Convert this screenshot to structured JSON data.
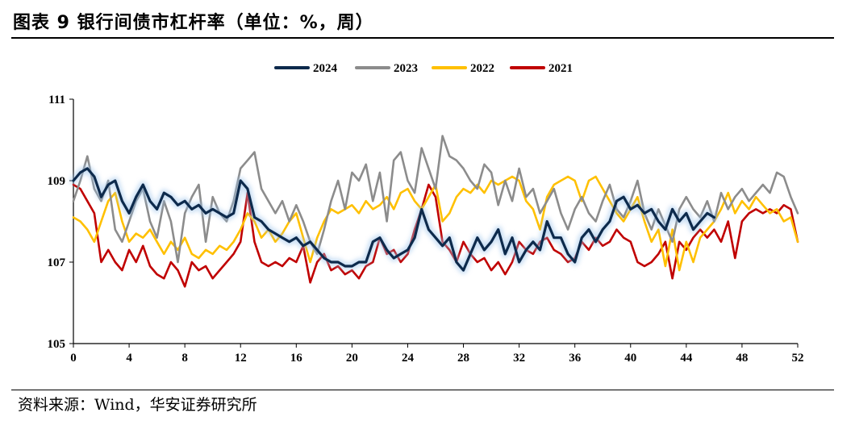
{
  "header": {
    "title": "图表 9 银行间债市杠杆率（单位：%，周）"
  },
  "footer": {
    "source": "资料来源：Wind，华安证券研究所"
  },
  "chart_data": {
    "type": "line",
    "title": "银行间债市杠杆率",
    "xlabel": "",
    "ylabel": "",
    "xlim": [
      0,
      52
    ],
    "ylim": [
      105,
      111
    ],
    "x_ticks": [
      0,
      4,
      8,
      12,
      16,
      20,
      24,
      28,
      32,
      36,
      40,
      44,
      48,
      52
    ],
    "y_ticks": [
      105,
      107,
      109,
      111
    ],
    "legend_position": "top-center",
    "series": [
      {
        "name": "2024",
        "color": "#0d2a4c",
        "x": [
          0,
          0.5,
          1,
          1.5,
          2,
          2.5,
          3,
          3.5,
          4,
          4.5,
          5,
          5.5,
          6,
          6.5,
          7,
          7.5,
          8,
          8.5,
          9,
          9.5,
          10,
          10.5,
          11,
          11.5,
          12,
          12.5,
          13,
          13.5,
          14,
          14.5,
          15,
          15.5,
          16,
          16.5,
          17,
          17.5,
          18,
          18.5,
          19,
          19.5,
          20,
          20.5,
          21,
          21.5,
          22,
          22.5,
          23,
          23.5,
          24,
          24.5,
          25,
          25.5,
          26,
          26.5,
          27,
          27.5,
          28,
          28.5,
          29,
          29.5,
          30,
          30.5,
          31,
          31.5,
          32,
          32.5,
          33,
          33.5,
          34,
          34.5,
          35,
          35.5,
          36,
          36.5,
          37,
          37.5,
          38,
          38.5,
          39,
          39.5,
          40,
          40.5,
          41,
          41.5,
          42,
          42.5,
          43,
          43.5,
          44,
          44.5,
          45,
          45.5,
          46
        ],
        "values": [
          109.0,
          109.2,
          109.3,
          109.1,
          108.6,
          108.9,
          109.0,
          108.5,
          108.2,
          108.6,
          108.9,
          108.5,
          108.3,
          108.7,
          108.6,
          108.4,
          108.5,
          108.3,
          108.4,
          108.2,
          108.3,
          108.2,
          108.1,
          108.2,
          109.0,
          108.8,
          108.1,
          108.0,
          107.8,
          107.7,
          107.6,
          107.5,
          107.6,
          107.4,
          107.5,
          107.3,
          107.1,
          107.0,
          107.0,
          106.9,
          106.9,
          107.0,
          107.0,
          107.5,
          107.6,
          107.3,
          107.1,
          107.2,
          107.3,
          107.6,
          108.3,
          107.8,
          107.6,
          107.4,
          107.6,
          107.0,
          106.8,
          107.2,
          107.6,
          107.3,
          107.5,
          107.8,
          107.2,
          107.6,
          107.0,
          107.3,
          107.5,
          107.3,
          108.0,
          107.6,
          107.6,
          107.2,
          107.0,
          107.6,
          107.8,
          107.5,
          107.8,
          108.0,
          108.5,
          108.6,
          108.3,
          108.4,
          108.2,
          108.3,
          108.0,
          107.8,
          108.3,
          108.0,
          108.2,
          107.8,
          108.0,
          108.2,
          108.1
        ]
      },
      {
        "name": "2023",
        "color": "#8c8c8c",
        "x": [
          0,
          0.5,
          1,
          1.5,
          2,
          2.5,
          3,
          3.5,
          4,
          4.5,
          5,
          5.5,
          6,
          6.5,
          7,
          7.5,
          8,
          8.5,
          9,
          9.5,
          10,
          10.5,
          11,
          11.5,
          12,
          12.5,
          13,
          13.5,
          14,
          14.5,
          15,
          15.5,
          16,
          16.5,
          17,
          17.5,
          18,
          18.5,
          19,
          19.5,
          20,
          20.5,
          21,
          21.5,
          22,
          22.5,
          23,
          23.5,
          24,
          24.5,
          25,
          25.5,
          26,
          26.5,
          27,
          27.5,
          28,
          28.5,
          29,
          29.5,
          30,
          30.5,
          31,
          31.5,
          32,
          32.5,
          33,
          33.5,
          34,
          34.5,
          35,
          35.5,
          36,
          36.5,
          37,
          37.5,
          38,
          38.5,
          39,
          39.5,
          40,
          40.5,
          41,
          41.5,
          42,
          42.5,
          43,
          43.5,
          44,
          44.5,
          45,
          45.5,
          46,
          46.5,
          47,
          47.5,
          48,
          48.5,
          49,
          49.5,
          50,
          50.5,
          51,
          51.5,
          52
        ],
        "values": [
          108.5,
          109.0,
          109.6,
          108.8,
          108.5,
          109.0,
          107.8,
          107.5,
          108.0,
          108.5,
          108.8,
          108.0,
          107.6,
          108.5,
          108.0,
          107.0,
          108.2,
          108.6,
          108.9,
          107.5,
          108.6,
          108.2,
          108.0,
          108.5,
          109.3,
          109.5,
          109.7,
          108.8,
          108.5,
          108.2,
          108.5,
          108.0,
          108.4,
          108.0,
          107.5,
          107.2,
          107.8,
          108.5,
          109.0,
          108.3,
          109.2,
          109.0,
          109.4,
          108.5,
          109.2,
          108.0,
          109.5,
          109.7,
          109.0,
          108.7,
          109.8,
          109.3,
          108.8,
          110.1,
          109.6,
          109.5,
          109.3,
          109.0,
          108.8,
          109.4,
          109.2,
          108.4,
          109.0,
          108.5,
          109.3,
          108.6,
          108.8,
          108.2,
          108.5,
          108.8,
          108.2,
          107.8,
          108.3,
          108.6,
          108.2,
          108.0,
          108.5,
          108.9,
          108.3,
          108.1,
          108.5,
          109.0,
          108.2,
          107.8,
          108.3,
          107.9,
          107.5,
          108.3,
          108.6,
          108.3,
          108.1,
          108.5,
          108.0,
          108.7,
          108.3,
          108.6,
          108.8,
          108.5,
          108.7,
          108.9,
          108.7,
          109.2,
          109.1,
          108.6,
          108.2
        ]
      },
      {
        "name": "2022",
        "color": "#ffc000",
        "x": [
          0,
          0.5,
          1,
          1.5,
          2,
          2.5,
          3,
          3.5,
          4,
          4.5,
          5,
          5.5,
          6,
          6.5,
          7,
          7.5,
          8,
          8.5,
          9,
          9.5,
          10,
          10.5,
          11,
          11.5,
          12,
          12.5,
          13,
          13.5,
          14,
          14.5,
          15,
          15.5,
          16,
          16.5,
          17,
          17.5,
          18,
          18.5,
          19,
          19.5,
          20,
          20.5,
          21,
          21.5,
          22,
          22.5,
          23,
          23.5,
          24,
          24.5,
          25,
          25.5,
          26,
          26.5,
          27,
          27.5,
          28,
          28.5,
          29,
          29.5,
          30,
          30.5,
          31,
          31.5,
          32,
          32.5,
          33,
          33.5,
          34,
          34.5,
          35,
          35.5,
          36,
          36.5,
          37,
          37.5,
          38,
          38.5,
          39,
          39.5,
          40,
          40.5,
          41,
          41.5,
          42,
          42.5,
          43,
          43.5,
          44,
          44.5,
          45,
          45.5,
          46,
          46.5,
          47,
          47.5,
          48,
          48.5,
          49,
          49.5,
          50,
          50.5,
          51,
          51.5,
          52
        ],
        "values": [
          108.1,
          108.0,
          107.8,
          107.5,
          108.0,
          108.5,
          108.7,
          108.0,
          107.5,
          107.7,
          107.6,
          107.8,
          107.5,
          107.2,
          107.5,
          107.3,
          107.6,
          107.2,
          107.1,
          107.3,
          107.2,
          107.4,
          107.3,
          107.5,
          107.8,
          108.2,
          108.0,
          107.6,
          107.8,
          107.5,
          107.7,
          108.0,
          108.2,
          107.6,
          107.0,
          107.6,
          108.0,
          108.3,
          108.2,
          108.3,
          108.4,
          108.2,
          108.5,
          108.3,
          108.4,
          108.6,
          108.3,
          108.7,
          108.8,
          108.5,
          108.3,
          108.6,
          108.9,
          108.0,
          108.2,
          108.6,
          108.8,
          108.7,
          108.9,
          108.7,
          109.0,
          108.9,
          109.0,
          109.1,
          109.0,
          108.5,
          108.3,
          107.8,
          108.6,
          108.9,
          109.0,
          109.1,
          109.0,
          108.5,
          109.0,
          109.1,
          108.8,
          108.5,
          108.2,
          108.0,
          108.3,
          108.6,
          108.0,
          107.5,
          107.8,
          106.9,
          107.8,
          106.8,
          107.5,
          107.0,
          107.6,
          107.8,
          108.0,
          108.3,
          108.7,
          108.2,
          108.5,
          108.3,
          108.6,
          108.4,
          108.2,
          108.3,
          108.0,
          108.1,
          107.5
        ]
      },
      {
        "name": "2021",
        "color": "#c00000",
        "x": [
          0,
          0.5,
          1,
          1.5,
          2,
          2.5,
          3,
          3.5,
          4,
          4.5,
          5,
          5.5,
          6,
          6.5,
          7,
          7.5,
          8,
          8.5,
          9,
          9.5,
          10,
          10.5,
          11,
          11.5,
          12,
          12.5,
          13,
          13.5,
          14,
          14.5,
          15,
          15.5,
          16,
          16.5,
          17,
          17.5,
          18,
          18.5,
          19,
          19.5,
          20,
          20.5,
          21,
          21.5,
          22,
          22.5,
          23,
          23.5,
          24,
          24.5,
          25,
          25.5,
          26,
          26.5,
          27,
          27.5,
          28,
          28.5,
          29,
          29.5,
          30,
          30.5,
          31,
          31.5,
          32,
          32.5,
          33,
          33.5,
          34,
          34.5,
          35,
          35.5,
          36,
          36.5,
          37,
          37.5,
          38,
          38.5,
          39,
          39.5,
          40,
          40.5,
          41,
          41.5,
          42,
          42.5,
          43,
          43.5,
          44,
          44.5,
          45,
          45.5,
          46,
          46.5,
          47,
          47.5,
          48,
          48.5,
          49,
          49.5,
          50,
          50.5,
          51,
          51.5,
          52
        ],
        "values": [
          108.9,
          108.8,
          108.5,
          108.2,
          107.0,
          107.3,
          107.0,
          106.8,
          107.3,
          107.0,
          107.4,
          106.9,
          106.7,
          106.6,
          107.0,
          106.8,
          106.4,
          107.0,
          106.8,
          106.9,
          106.6,
          106.8,
          107.0,
          107.2,
          107.5,
          108.7,
          107.5,
          107.0,
          106.9,
          107.0,
          106.9,
          107.1,
          107.0,
          107.4,
          106.5,
          107.0,
          107.2,
          106.8,
          106.9,
          106.7,
          106.8,
          106.6,
          106.9,
          107.0,
          107.6,
          107.2,
          107.3,
          107.0,
          107.2,
          107.8,
          108.3,
          108.9,
          108.6,
          107.5,
          107.3,
          107.0,
          107.5,
          107.2,
          107.0,
          107.1,
          106.8,
          107.0,
          106.7,
          107.0,
          107.5,
          107.3,
          107.2,
          107.5,
          107.6,
          107.3,
          107.2,
          107.0,
          107.1,
          107.5,
          107.3,
          107.6,
          107.4,
          107.5,
          107.8,
          107.6,
          107.5,
          107.0,
          106.9,
          107.0,
          107.2,
          107.5,
          106.6,
          107.5,
          107.3,
          107.6,
          107.8,
          107.6,
          107.8,
          107.5,
          108.0,
          107.1,
          108.0,
          108.2,
          108.3,
          108.2,
          108.3,
          108.2,
          108.4,
          108.3,
          107.5
        ]
      }
    ]
  }
}
